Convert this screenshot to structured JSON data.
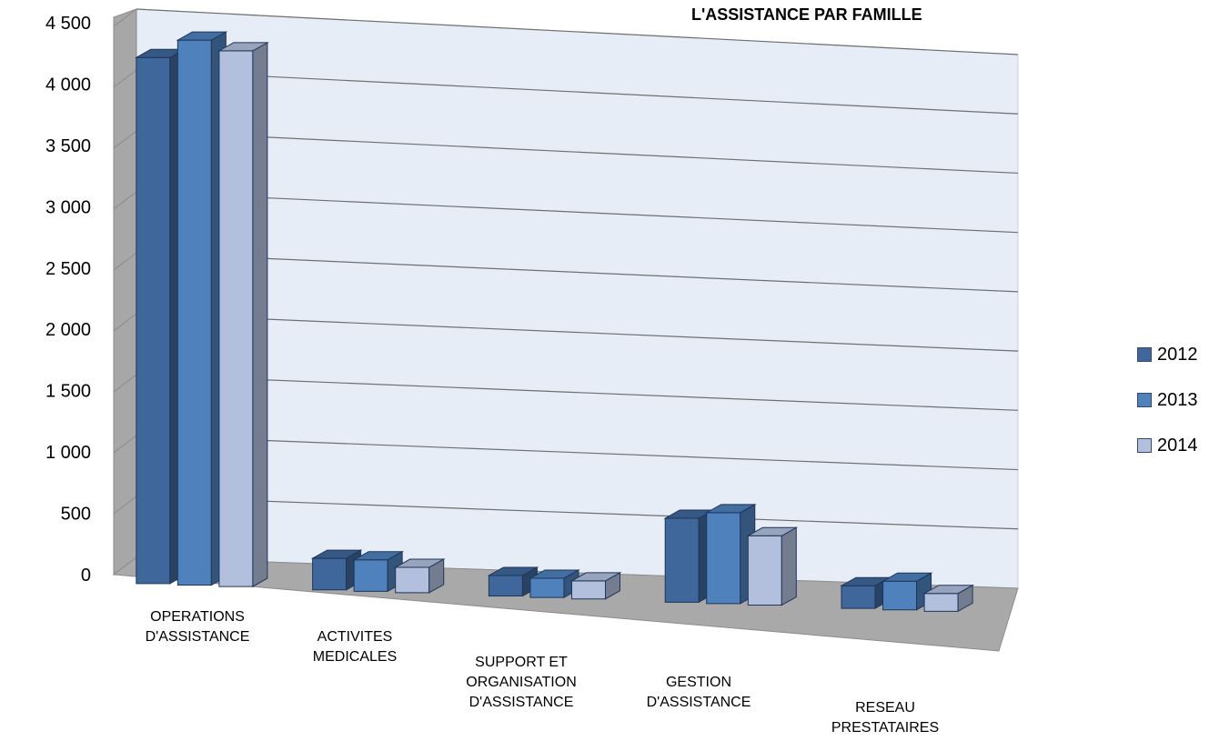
{
  "chart_data": {
    "type": "bar",
    "title": "L'ASSISTANCE PAR FAMILLE",
    "categories": [
      "OPERATIONS D'ASSISTANCE",
      "ACTIVITES MEDICALES",
      "SUPPORT ET ORGANISATION D'ASSISTANCE",
      "GESTION D'ASSISTANCE",
      "RESEAU PRESTATAIRES"
    ],
    "series": [
      {
        "name": "2012",
        "color": "#3f679b",
        "values": [
          4320,
          260,
          170,
          700,
          190
        ]
      },
      {
        "name": "2013",
        "color": "#4f81bd",
        "values": [
          4480,
          260,
          160,
          760,
          240
        ]
      },
      {
        "name": "2014",
        "color": "#b3c0dd",
        "values": [
          4410,
          210,
          150,
          580,
          150
        ]
      }
    ],
    "ylim": [
      0,
      4500
    ],
    "yticks": [
      "0",
      "500",
      "1 000",
      "1 500",
      "2 000",
      "2 500",
      "3 000",
      "3 500",
      "4 000",
      "4 500"
    ],
    "grid": true,
    "legend_position": "right"
  }
}
